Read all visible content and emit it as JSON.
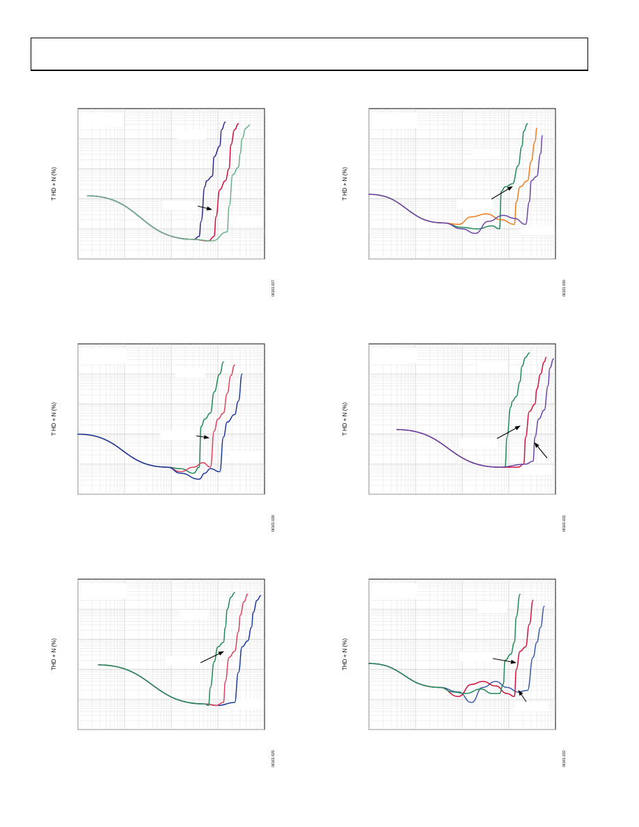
{
  "page": {
    "header_title": ""
  },
  "panels": [
    {
      "id": "p1",
      "ylabel": "T HD + N (%)",
      "figure_number": "06161-027",
      "chart_data": {
        "type": "line",
        "title": "",
        "x_scale": "log",
        "y_scale": "log",
        "xlim": [
          0,
          1
        ],
        "ylim": [
          0,
          1
        ],
        "grid": true,
        "series": [
          {
            "color": "#7a9cd0",
            "x": [
              0.05,
              0.62
            ],
            "y": [
              0.42,
              0.13
            ]
          },
          {
            "color": "#2a2a8a",
            "x": [
              0.05,
              0.62,
              0.65,
              0.66,
              0.68,
              0.69,
              0.72,
              0.73,
              0.76,
              0.77,
              0.79
            ],
            "y": [
              0.42,
              0.13,
              0.15,
              0.25,
              0.48,
              0.52,
              0.55,
              0.68,
              0.75,
              0.86,
              0.91
            ]
          },
          {
            "color": "#d0103a",
            "x": [
              0.05,
              0.62,
              0.7,
              0.73,
              0.74,
              0.76,
              0.79,
              0.81,
              0.82,
              0.84,
              0.86
            ],
            "y": [
              0.42,
              0.13,
              0.12,
              0.15,
              0.28,
              0.46,
              0.52,
              0.6,
              0.76,
              0.86,
              0.9
            ]
          },
          {
            "color": "#66b28a",
            "x": [
              0.05,
              0.62,
              0.72,
              0.8,
              0.81,
              0.83,
              0.86,
              0.87,
              0.88,
              0.9,
              0.92
            ],
            "y": [
              0.42,
              0.13,
              0.12,
              0.18,
              0.35,
              0.56,
              0.61,
              0.7,
              0.8,
              0.87,
              0.89
            ]
          }
        ]
      }
    },
    {
      "id": "p2",
      "ylabel": "T HD + N (%)",
      "figure_number": "06161-030",
      "chart_data": {
        "type": "line",
        "title": "",
        "x_scale": "log",
        "y_scale": "log",
        "xlim": [
          0,
          1
        ],
        "ylim": [
          0,
          1
        ],
        "grid": true,
        "series": [
          {
            "color": "#1f8a58",
            "x": [
              0.0,
              0.4,
              0.5,
              0.58,
              0.66,
              0.7,
              0.71,
              0.73,
              0.77,
              0.8,
              0.82,
              0.83,
              0.85
            ],
            "y": [
              0.43,
              0.24,
              0.21,
              0.2,
              0.22,
              0.2,
              0.45,
              0.48,
              0.5,
              0.62,
              0.75,
              0.85,
              0.9
            ]
          },
          {
            "color": "#f07a1a",
            "x": [
              0.0,
              0.4,
              0.48,
              0.55,
              0.63,
              0.71,
              0.78,
              0.79,
              0.81,
              0.85,
              0.87,
              0.89,
              0.9
            ],
            "y": [
              0.43,
              0.24,
              0.23,
              0.28,
              0.3,
              0.26,
              0.23,
              0.38,
              0.48,
              0.52,
              0.65,
              0.78,
              0.87
            ]
          },
          {
            "color": "#6a44a8",
            "x": [
              0.0,
              0.4,
              0.5,
              0.57,
              0.64,
              0.72,
              0.78,
              0.84,
              0.86,
              0.87,
              0.9,
              0.92,
              0.93
            ],
            "y": [
              0.43,
              0.24,
              0.2,
              0.17,
              0.25,
              0.29,
              0.27,
              0.23,
              0.38,
              0.52,
              0.55,
              0.7,
              0.82
            ]
          }
        ]
      }
    },
    {
      "id": "p3",
      "ylabel": "T HD + N (%)",
      "figure_number": "06161-028",
      "chart_data": {
        "type": "line",
        "title": "",
        "x_scale": "log",
        "y_scale": "log",
        "xlim": [
          0,
          1
        ],
        "ylim": [
          0,
          1
        ],
        "grid": true,
        "series": [
          {
            "color": "#1f8a58",
            "x": [
              0.0,
              0.48,
              0.55,
              0.62,
              0.65,
              0.66,
              0.68,
              0.71,
              0.73,
              0.76,
              0.78
            ],
            "y": [
              0.4,
              0.18,
              0.17,
              0.14,
              0.18,
              0.45,
              0.5,
              0.54,
              0.68,
              0.8,
              0.88
            ]
          },
          {
            "color": "#e0405a",
            "x": [
              0.0,
              0.48,
              0.55,
              0.62,
              0.67,
              0.71,
              0.73,
              0.75,
              0.78,
              0.8,
              0.82,
              0.84
            ],
            "y": [
              0.4,
              0.18,
              0.15,
              0.18,
              0.21,
              0.18,
              0.42,
              0.5,
              0.54,
              0.67,
              0.79,
              0.86
            ]
          },
          {
            "color": "#1a3a9a",
            "x": [
              0.0,
              0.48,
              0.55,
              0.65,
              0.68,
              0.71,
              0.76,
              0.78,
              0.8,
              0.84,
              0.86,
              0.88
            ],
            "y": [
              0.4,
              0.18,
              0.14,
              0.1,
              0.14,
              0.17,
              0.15,
              0.38,
              0.48,
              0.53,
              0.62,
              0.8
            ]
          }
        ]
      }
    },
    {
      "id": "p4",
      "ylabel": "T HD + N (%)",
      "figure_number": "06161-031",
      "chart_data": {
        "type": "line",
        "title": "",
        "x_scale": "log",
        "y_scale": "log",
        "xlim": [
          0,
          1
        ],
        "ylim": [
          0,
          1
        ],
        "grid": true,
        "series": [
          {
            "color": "#1f8a58",
            "x": [
              0.15,
              0.7,
              0.73,
              0.74,
              0.76,
              0.77,
              0.79,
              0.81,
              0.82,
              0.84,
              0.86
            ],
            "y": [
              0.43,
              0.18,
              0.18,
              0.38,
              0.58,
              0.62,
              0.65,
              0.75,
              0.85,
              0.91,
              0.94
            ]
          },
          {
            "color": "#d0103a",
            "x": [
              0.15,
              0.7,
              0.8,
              0.83,
              0.84,
              0.86,
              0.89,
              0.9,
              0.92,
              0.94,
              0.95
            ],
            "y": [
              0.43,
              0.18,
              0.18,
              0.2,
              0.38,
              0.55,
              0.6,
              0.7,
              0.8,
              0.88,
              0.91
            ]
          },
          {
            "color": "#6a44a8",
            "x": [
              0.15,
              0.7,
              0.84,
              0.88,
              0.89,
              0.91,
              0.94,
              0.96,
              0.97,
              0.99
            ],
            "y": [
              0.43,
              0.18,
              0.2,
              0.22,
              0.38,
              0.5,
              0.56,
              0.72,
              0.84,
              0.9
            ]
          }
        ]
      }
    },
    {
      "id": "p5",
      "ylabel": "THD + N (%)",
      "figure_number": "06161-029",
      "chart_data": {
        "type": "line",
        "title": "",
        "x_scale": "log",
        "y_scale": "log",
        "xlim": [
          0,
          1
        ],
        "ylim": [
          0,
          1
        ],
        "grid": true,
        "series": [
          {
            "color": "#1a3a9a",
            "x": [
              0.11,
              0.68,
              0.75,
              0.84,
              0.86,
              0.88,
              0.91,
              0.93,
              0.94,
              0.96,
              0.98
            ],
            "y": [
              0.43,
              0.17,
              0.16,
              0.18,
              0.38,
              0.55,
              0.59,
              0.68,
              0.78,
              0.86,
              0.89
            ]
          },
          {
            "color": "#e0405a",
            "x": [
              0.11,
              0.68,
              0.74,
              0.78,
              0.79,
              0.81,
              0.84,
              0.86,
              0.87,
              0.89,
              0.91
            ],
            "y": [
              0.43,
              0.17,
              0.16,
              0.18,
              0.32,
              0.48,
              0.52,
              0.65,
              0.76,
              0.85,
              0.9
            ]
          },
          {
            "color": "#1f8a58",
            "x": [
              0.11,
              0.68,
              0.7,
              0.71,
              0.73,
              0.75,
              0.78,
              0.79,
              0.8,
              0.82,
              0.84
            ],
            "y": [
              0.43,
              0.17,
              0.16,
              0.28,
              0.45,
              0.55,
              0.58,
              0.68,
              0.8,
              0.88,
              0.91
            ]
          }
        ]
      }
    },
    {
      "id": "p6",
      "ylabel": "THD + N (%)",
      "figure_number": "06161-032",
      "chart_data": {
        "type": "line",
        "title": "",
        "x_scale": "log",
        "y_scale": "log",
        "xlim": [
          0,
          1
        ],
        "ylim": [
          0,
          1
        ],
        "grid": true,
        "series": [
          {
            "color": "#3a5aa8",
            "x": [
              0.0,
              0.38,
              0.48,
              0.55,
              0.61,
              0.68,
              0.74,
              0.8,
              0.85,
              0.88,
              0.9,
              0.92,
              0.94
            ],
            "y": [
              0.44,
              0.28,
              0.25,
              0.18,
              0.28,
              0.32,
              0.28,
              0.25,
              0.26,
              0.48,
              0.58,
              0.68,
              0.82
            ]
          },
          {
            "color": "#d0103a",
            "x": [
              0.0,
              0.38,
              0.48,
              0.55,
              0.61,
              0.68,
              0.74,
              0.78,
              0.79,
              0.81,
              0.84,
              0.86,
              0.88
            ],
            "y": [
              0.44,
              0.28,
              0.22,
              0.3,
              0.32,
              0.29,
              0.24,
              0.22,
              0.4,
              0.52,
              0.55,
              0.7,
              0.86
            ]
          },
          {
            "color": "#1f8a58",
            "x": [
              0.0,
              0.38,
              0.45,
              0.52,
              0.6,
              0.66,
              0.7,
              0.72,
              0.73,
              0.76,
              0.78,
              0.79,
              0.81
            ],
            "y": [
              0.44,
              0.28,
              0.25,
              0.24,
              0.27,
              0.24,
              0.24,
              0.3,
              0.46,
              0.5,
              0.58,
              0.75,
              0.9
            ]
          }
        ]
      }
    }
  ]
}
